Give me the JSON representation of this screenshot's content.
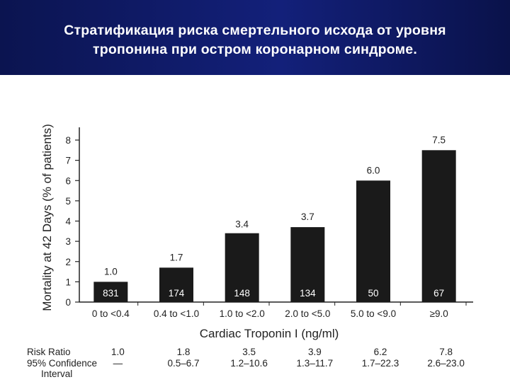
{
  "slide": {
    "title_line1": "Стратификация риска смертельного исхода от уровня",
    "title_line2": "тропонина при остром коронарном синдроме."
  },
  "chart_data": {
    "type": "bar",
    "categories": [
      "0 to <0.4",
      "0.4 to <1.0",
      "1.0 to <2.0",
      "2.0 to <5.0",
      "5.0 to <9.0",
      "≥9.0"
    ],
    "values": [
      1.0,
      1.7,
      3.4,
      3.7,
      6.0,
      7.5
    ],
    "value_labels": [
      "1.0",
      "1.7",
      "3.4",
      "3.7",
      "6.0",
      "7.5"
    ],
    "counts": [
      "831",
      "174",
      "148",
      "134",
      "50",
      "67"
    ],
    "xlabel": "Cardiac Troponin I (ng/ml)",
    "ylabel": "Mortality at 42 Days (% of patients)",
    "ylim": [
      0,
      8
    ],
    "yticks": [
      "0",
      "1",
      "2",
      "3",
      "4",
      "5",
      "6",
      "7",
      "8"
    ],
    "bar_color": "#1a1a1a",
    "grid": false
  },
  "stats": {
    "risk_ratio_label": "Risk Ratio",
    "ci_label_line1": "95% Confidence",
    "ci_label_line2": "Interval",
    "risk_ratios": [
      "1.0",
      "1.8",
      "3.5",
      "3.9",
      "6.2",
      "7.8"
    ],
    "confidence_intervals": [
      "—",
      "0.5–6.7",
      "1.2–10.6",
      "1.3–11.7",
      "1.7–22.3",
      "2.6–23.0"
    ]
  },
  "colors": {
    "header_bg": "#0d1760",
    "header_text": "#ffffff"
  }
}
